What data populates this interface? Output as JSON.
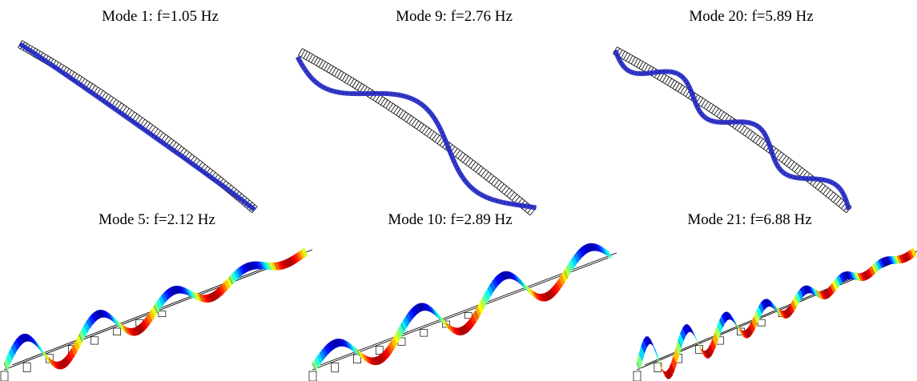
{
  "panels": [
    {
      "title": "Mode 1: f=1.05 Hz"
    },
    {
      "title": "Mode 9: f=2.76 Hz"
    },
    {
      "title": "Mode 20: f=5.89 Hz"
    },
    {
      "title": "Mode 5: f=2.12 Hz"
    },
    {
      "title": "Mode 10: f=2.89 Hz"
    },
    {
      "title": "Mode 21: f=6.88 Hz"
    }
  ]
}
